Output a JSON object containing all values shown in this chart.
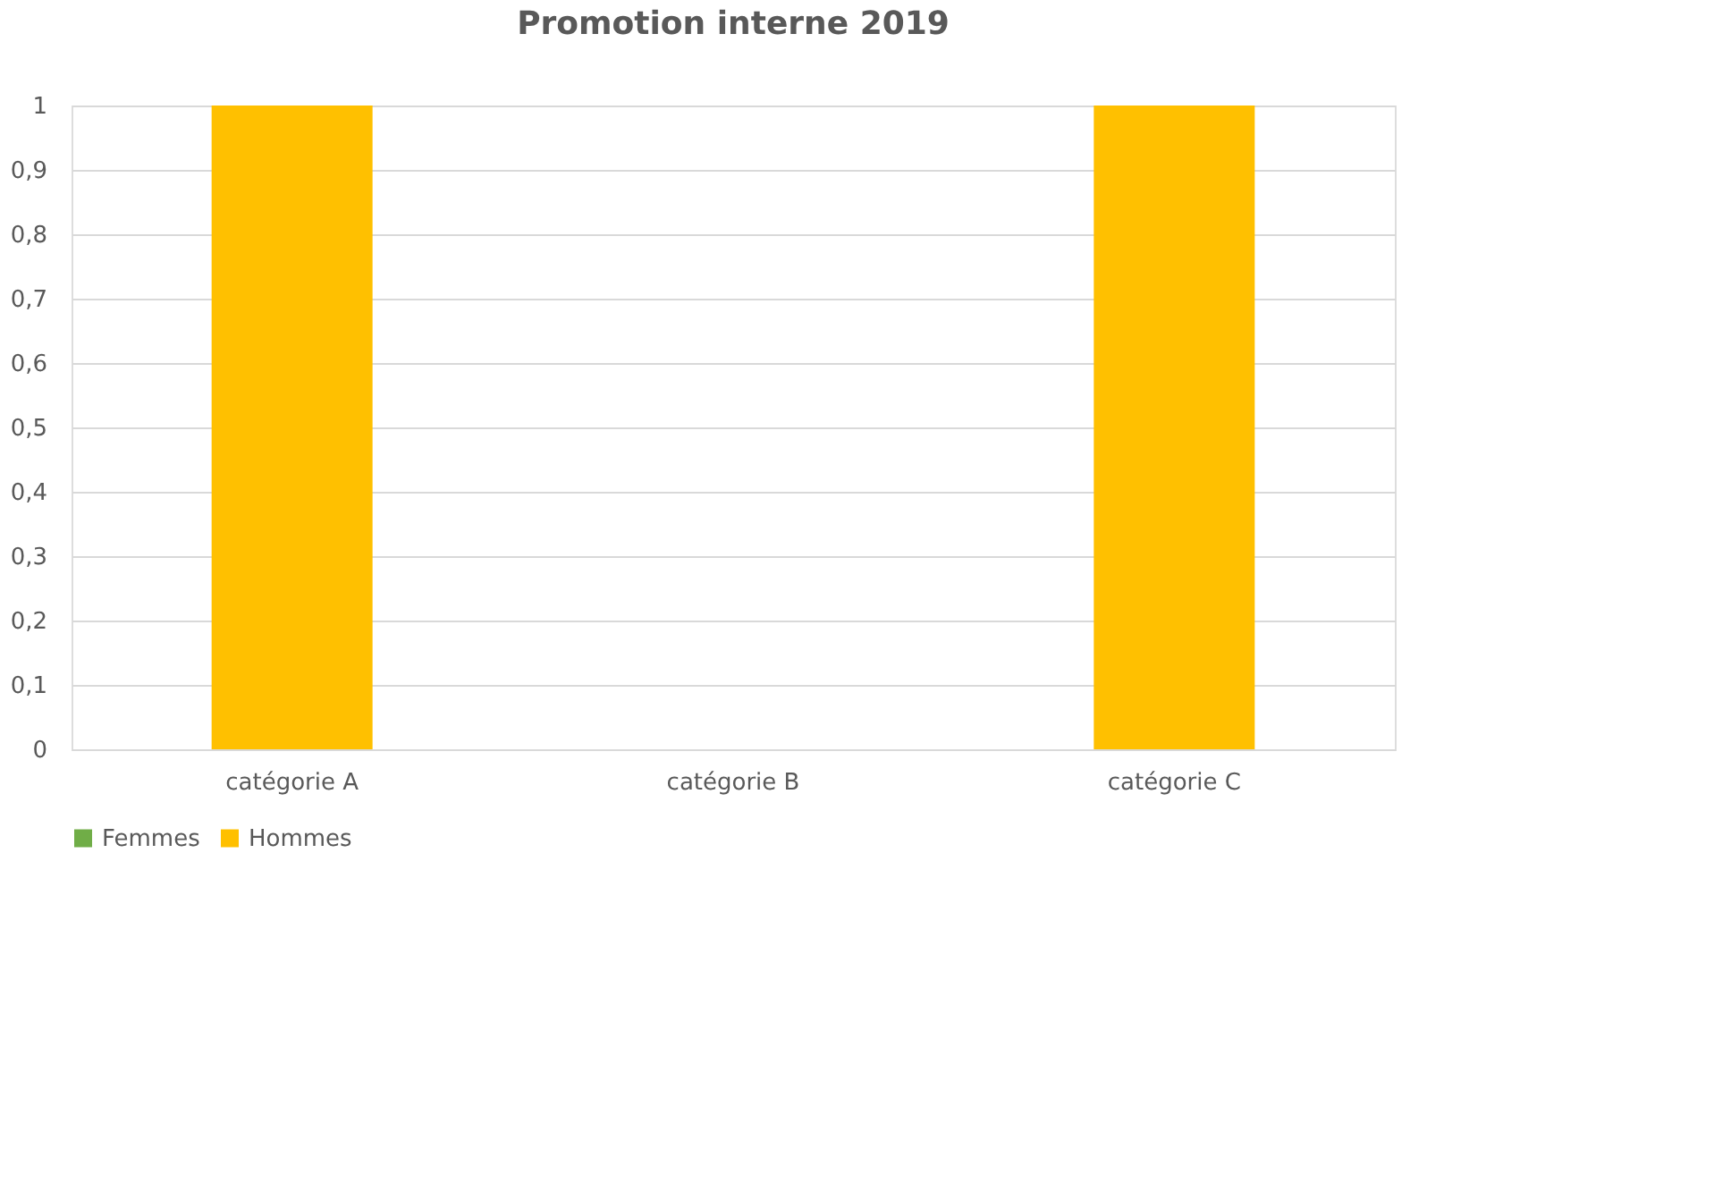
{
  "chart_data": {
    "type": "bar",
    "title": "Promotion interne 2019",
    "categories": [
      "catégorie A",
      "catégorie B",
      "catégorie C"
    ],
    "series": [
      {
        "name": "Femmes",
        "color": "#70ad47",
        "values": [
          0,
          0,
          0
        ]
      },
      {
        "name": "Hommes",
        "color": "#ffc000",
        "values": [
          1,
          0,
          1
        ]
      }
    ],
    "ylim": [
      0,
      1
    ],
    "yticks": [
      0,
      {
        "value": 0.1,
        "label": "0,1"
      },
      {
        "value": 0.2,
        "label": "0,2"
      },
      {
        "value": 0.3,
        "label": "0,3"
      },
      {
        "value": 0.4,
        "label": "0,4"
      },
      {
        "value": 0.5,
        "label": "0,5"
      },
      {
        "value": 0.6,
        "label": "0,6"
      },
      {
        "value": 0.7,
        "label": "0,7"
      },
      {
        "value": 0.8,
        "label": "0,8"
      },
      {
        "value": 0.9,
        "label": "0,9"
      },
      1
    ],
    "grid": "y",
    "legend": "bottom"
  }
}
